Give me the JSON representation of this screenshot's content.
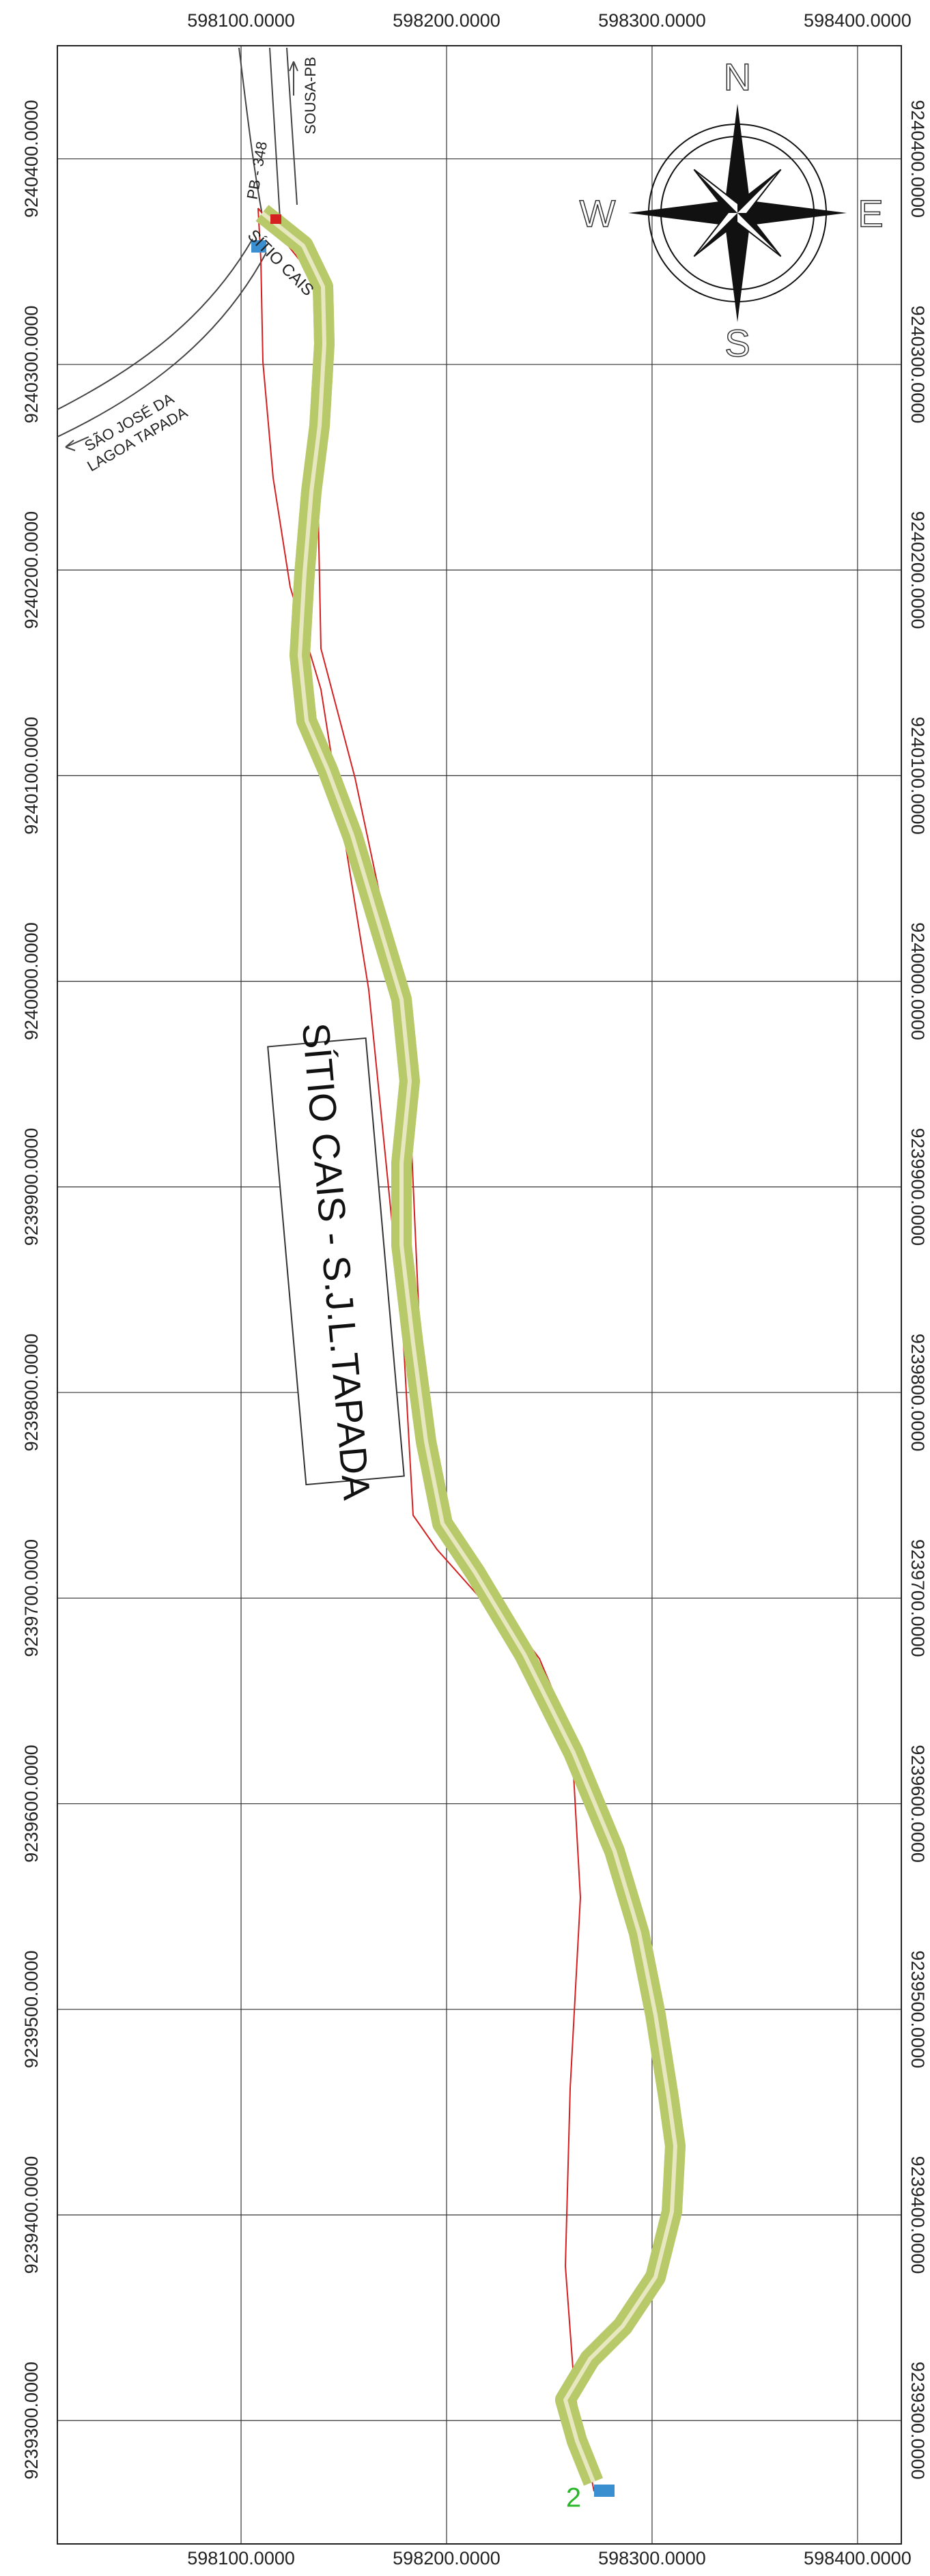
{
  "map": {
    "xlim": [
      598010.6,
      598421.3
    ],
    "ylim": [
      9239240,
      9240455
    ],
    "xticks": [
      {
        "value": 598100,
        "label": "598100.0000"
      },
      {
        "value": 598200,
        "label": "598200.0000"
      },
      {
        "value": 598300,
        "label": "598300.0000"
      },
      {
        "value": 598400,
        "label": "598400.0000"
      }
    ],
    "yticks": [
      {
        "value": 9240400,
        "label": "9240400.0000"
      },
      {
        "value": 9240300,
        "label": "9240300.0000"
      },
      {
        "value": 9240200,
        "label": "9240200.0000"
      },
      {
        "value": 9240100,
        "label": "9240100.0000"
      },
      {
        "value": 9240000,
        "label": "9240000.0000"
      },
      {
        "value": 9239900,
        "label": "9239900.0000"
      },
      {
        "value": 9239800,
        "label": "9239800.0000"
      },
      {
        "value": 9239700,
        "label": "9239700.0000"
      },
      {
        "value": 9239600,
        "label": "9239600.0000"
      },
      {
        "value": 9239500,
        "label": "9239500.0000"
      },
      {
        "value": 9239400,
        "label": "9239400.0000"
      },
      {
        "value": 9239300,
        "label": "9239300.0000"
      }
    ],
    "title": "SÍTIO CAIS - S.J.L.TAPADA",
    "compass": {
      "n": "N",
      "s": "S",
      "w": "W",
      "e": "E"
    },
    "labels": {
      "sousa": "SOUSA-PB",
      "sitio": "SÍTIO CAIS",
      "sao_jose": "SÃO JOSÉ DA",
      "lagoa": "LAGOA TAPADA",
      "highway": "PB - 348",
      "sheet": "2"
    }
  }
}
